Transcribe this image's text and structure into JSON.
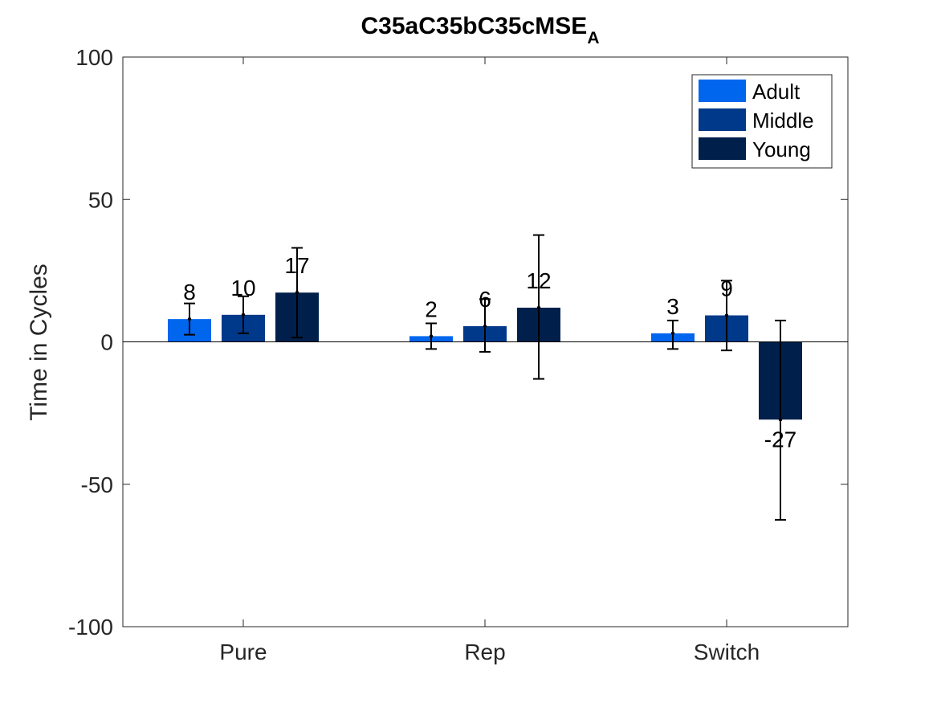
{
  "chart_data": {
    "type": "bar",
    "title": "C35aC35bC35cMSE",
    "title_subscript": "A",
    "xlabel": "",
    "ylabel": "Time in Cycles",
    "ylim": [
      -100,
      100
    ],
    "yticks": [
      -100,
      -50,
      0,
      50,
      100
    ],
    "grid": false,
    "legend_position": "top-right",
    "categories": [
      "Pure",
      "Rep",
      "Switch"
    ],
    "series": [
      {
        "name": "Adult",
        "color": "#0066ee",
        "values": [
          8,
          2,
          3
        ],
        "labels": [
          "8",
          "2",
          "3"
        ],
        "err_low": [
          2.5,
          -2.5,
          -2.5
        ],
        "err_high": [
          13.5,
          6.5,
          7.5
        ]
      },
      {
        "name": "Middle",
        "color": "#00398a",
        "values": [
          9.5,
          5.5,
          9.3
        ],
        "labels": [
          "10",
          "6",
          "9"
        ],
        "err_low": [
          3,
          -3.5,
          -3
        ],
        "err_high": [
          16,
          15,
          21.5
        ]
      },
      {
        "name": "Young",
        "color": "#00204b",
        "values": [
          17.3,
          12,
          -27.3
        ],
        "labels": [
          "17",
          "12",
          "-27"
        ],
        "err_low": [
          1.5,
          -13,
          -62.5
        ],
        "err_high": [
          33,
          37.5,
          7.5
        ]
      }
    ]
  }
}
